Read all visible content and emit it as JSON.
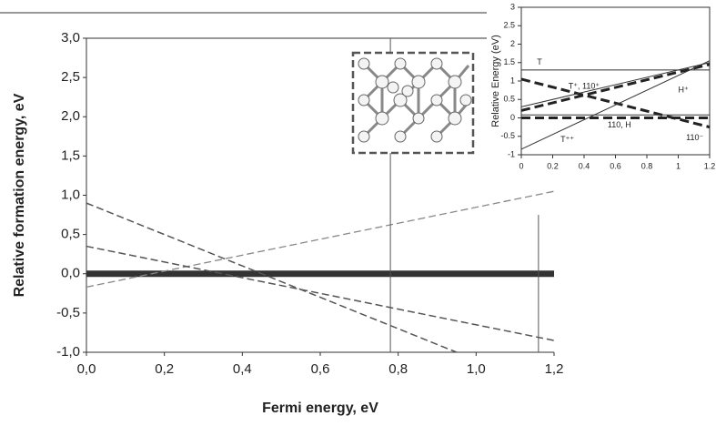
{
  "chart_data": [
    {
      "type": "line",
      "xlabel": "Fermi energy, eV",
      "ylabel": "Relative formation energy, eV",
      "xlim": [
        0,
        1.2
      ],
      "ylim": [
        -1,
        3
      ],
      "xticks": [
        {
          "value": 0,
          "label": "0,0"
        },
        {
          "value": 0.2,
          "label": "0,2"
        },
        {
          "value": 0.4,
          "label": "0,4"
        },
        {
          "value": 0.6,
          "label": "0,6"
        },
        {
          "value": 0.8,
          "label": "0,8"
        },
        {
          "value": 1.0,
          "label": "1,0"
        },
        {
          "value": 1.2,
          "label": "1,2"
        }
      ],
      "yticks": [
        {
          "value": -1,
          "label": "-1,0"
        },
        {
          "value": -0.5,
          "label": "-0,5"
        },
        {
          "value": 0,
          "label": "0,0"
        },
        {
          "value": 0.5,
          "label": "0,5"
        },
        {
          "value": 1,
          "label": "1,0"
        },
        {
          "value": 1.5,
          "label": "1,5"
        },
        {
          "value": 2,
          "label": "2,0"
        },
        {
          "value": 2.5,
          "label": "2,5"
        },
        {
          "value": 3,
          "label": "3,0"
        }
      ],
      "series": [
        {
          "color": "#333333",
          "width": 7,
          "dashed": false,
          "x": [
            0,
            1.2
          ],
          "values": [
            0,
            0
          ]
        },
        {
          "color": "#888888",
          "width": 1.3,
          "dashed": true,
          "x": [
            0,
            1.2
          ],
          "values": [
            -0.17,
            1.05
          ]
        },
        {
          "color": "#555555",
          "width": 1.5,
          "dashed": true,
          "x": [
            0,
            0.95
          ],
          "values": [
            0.9,
            -1.0
          ]
        },
        {
          "color": "#555555",
          "width": 1.5,
          "dashed": true,
          "x": [
            0,
            1.2
          ],
          "values": [
            0.35,
            -0.85
          ]
        },
        {
          "color": "#555555",
          "width": 1,
          "dashed": false,
          "x": [
            0.78,
            0.78
          ],
          "values": [
            3,
            -1
          ]
        },
        {
          "color": "#555555",
          "width": 1,
          "dashed": false,
          "x": [
            1.16,
            1.16
          ],
          "values": [
            0.75,
            -1
          ]
        }
      ]
    },
    {
      "type": "line",
      "ylabel": "Relative Energy (eV)",
      "xlim": [
        0,
        1.2
      ],
      "ylim": [
        -1,
        3
      ],
      "xticks": [
        0,
        0.2,
        0.4,
        0.6,
        0.8,
        1,
        1.2
      ],
      "yticks": [
        -1,
        -0.5,
        0,
        0.5,
        1,
        1.5,
        2,
        2.5,
        3
      ],
      "series": [
        {
          "color": "#333333",
          "width": 1,
          "dashed": false,
          "x": [
            0,
            1.2
          ],
          "values": [
            1.3,
            1.3
          ]
        },
        {
          "color": "#222222",
          "width": 3,
          "dashed": true,
          "x": [
            0,
            1.2
          ],
          "values": [
            1.05,
            -0.25
          ]
        },
        {
          "color": "#222222",
          "width": 3,
          "dashed": true,
          "x": [
            0,
            1.2
          ],
          "values": [
            0.2,
            1.45
          ]
        },
        {
          "color": "#333333",
          "width": 1,
          "dashed": false,
          "x": [
            0,
            1.2
          ],
          "values": [
            0.3,
            1.5
          ]
        },
        {
          "color": "#333333",
          "width": 1,
          "dashed": false,
          "x": [
            0,
            1.2
          ],
          "values": [
            -0.85,
            1.55
          ]
        },
        {
          "color": "#222222",
          "width": 3,
          "dashed": true,
          "x": [
            0,
            1.2
          ],
          "values": [
            0,
            0
          ]
        },
        {
          "color": "#333333",
          "width": 1,
          "dashed": false,
          "x": [
            0,
            1.2
          ],
          "values": [
            0.08,
            0.08
          ]
        }
      ],
      "annotations": [
        {
          "text": "T",
          "x": 0.1,
          "y": 1.5
        },
        {
          "text": "T⁺, 110⁺",
          "x": 0.3,
          "y": 0.85
        },
        {
          "text": "H⁺",
          "x": 1.0,
          "y": 0.75
        },
        {
          "text": "110, H",
          "x": 0.55,
          "y": -0.2
        },
        {
          "text": "T⁺⁺",
          "x": 0.25,
          "y": -0.6
        },
        {
          "text": "110⁻",
          "x": 1.05,
          "y": -0.55
        }
      ]
    }
  ]
}
